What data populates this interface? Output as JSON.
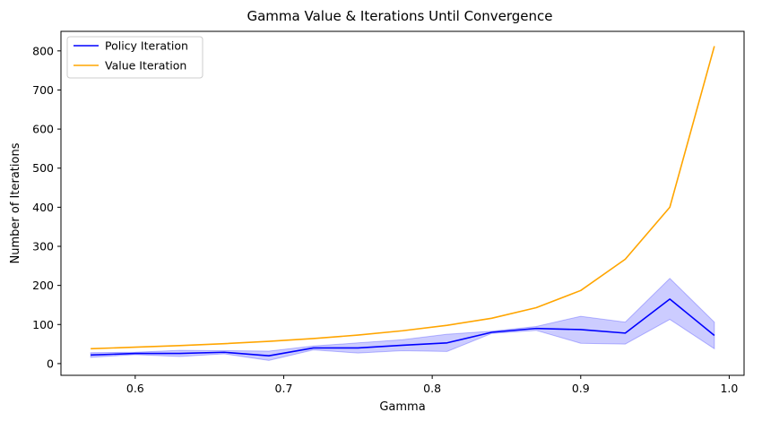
{
  "chart_data": {
    "type": "line",
    "title": "Gamma Value & Iterations Until Convergence",
    "xlabel": "Gamma",
    "ylabel": "Number of Iterations",
    "xlim": [
      0.55,
      1.01
    ],
    "ylim": [
      -30,
      850
    ],
    "x_ticks": [
      0.6,
      0.7,
      0.8,
      0.9,
      1.0
    ],
    "x_tick_labels": [
      "0.6",
      "0.7",
      "0.8",
      "0.9",
      "1.0"
    ],
    "y_ticks": [
      0,
      100,
      200,
      300,
      400,
      500,
      600,
      700,
      800
    ],
    "y_tick_labels": [
      "0",
      "100",
      "200",
      "300",
      "400",
      "500",
      "600",
      "700",
      "800"
    ],
    "grid": false,
    "legend_position": "top-left",
    "x": [
      0.57,
      0.6,
      0.63,
      0.66,
      0.69,
      0.72,
      0.75,
      0.78,
      0.81,
      0.84,
      0.87,
      0.9,
      0.93,
      0.96,
      0.99
    ],
    "series": [
      {
        "name": "Policy Iteration",
        "color": "#0000ff",
        "values": [
          22,
          26,
          26,
          29,
          20,
          40,
          40,
          47,
          53,
          80,
          90,
          87,
          78,
          165,
          72
        ],
        "band_lower": [
          16,
          23,
          18,
          25,
          8,
          35,
          27,
          33,
          31,
          77,
          85,
          52,
          50,
          113,
          38
        ],
        "band_upper": [
          28,
          29,
          34,
          33,
          32,
          45,
          53,
          61,
          75,
          83,
          95,
          121,
          106,
          218,
          106
        ],
        "band_color": "#0000ff"
      },
      {
        "name": "Value Iteration",
        "color": "#ffa500",
        "values": [
          38,
          42,
          46,
          51,
          57,
          64,
          73,
          84,
          98,
          116,
          143,
          187,
          267,
          400,
          812
        ]
      }
    ]
  }
}
